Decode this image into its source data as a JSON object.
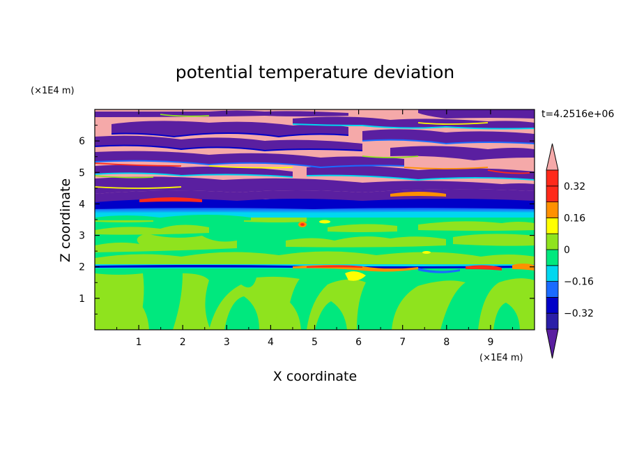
{
  "chart_data": {
    "type": "heatmap",
    "title": "potential temperature deviation",
    "xlabel": "X coordinate",
    "ylabel": "Z coordinate",
    "x_unit": "(×1E4 m)",
    "y_unit": "(×1E4 m)",
    "time_label": "t=4.2516e+06",
    "xlim": [
      0,
      10
    ],
    "ylim": [
      0,
      7
    ],
    "x_ticks": [
      1,
      2,
      3,
      4,
      5,
      6,
      7,
      8,
      9
    ],
    "y_ticks": [
      1,
      2,
      3,
      4,
      5,
      6
    ],
    "x_tick_labels": [
      "1",
      "2",
      "3",
      "4",
      "5",
      "6",
      "7",
      "8",
      "9"
    ],
    "y_tick_labels": [
      "1",
      "2",
      "3",
      "4",
      "5",
      "6"
    ],
    "colorbar": {
      "levels": [
        -0.4,
        -0.32,
        -0.24,
        -0.16,
        -0.08,
        0,
        0.08,
        0.16,
        0.24,
        0.32,
        0.4
      ],
      "colors": [
        "#5a1fa0",
        "#2a1ea8",
        "#0000c8",
        "#1a6bff",
        "#00d7f0",
        "#00e87e",
        "#8fe31e",
        "#ffff00",
        "#ff9000",
        "#ff2a1a",
        "#f5a9a9"
      ],
      "tick_values": [
        0.32,
        0.16,
        0,
        -0.16,
        -0.32
      ],
      "tick_labels": [
        "0.32",
        "0.16",
        "0",
        "−0.16",
        "−0.32"
      ],
      "extend": "both"
    },
    "regions": [
      {
        "z_range": [
          0,
          1.9
        ],
        "description": "mostly green (-0.08..0) with yellow-green (0..0.08) convective plumes"
      },
      {
        "z_range": [
          1.9,
          2.1
        ],
        "description": "thin band with blue/red extremes"
      },
      {
        "z_range": [
          2.1,
          3.7
        ],
        "description": "green / yellow-green mottled layer"
      },
      {
        "z_range": [
          3.7,
          7.0
        ],
        "description": "alternating pink (>0.4) and purple (<-0.4) layered bands"
      }
    ]
  }
}
